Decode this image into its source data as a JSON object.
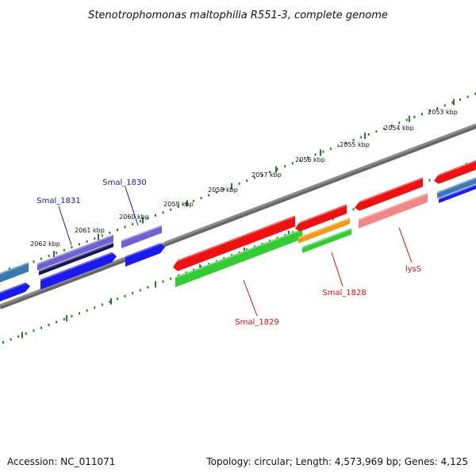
{
  "title": "Stenotrophomonas maltophilia R551-3, complete genome",
  "footer": {
    "accession": "Accession: NC_011071",
    "summary": "Topology: circular; Length: 4,573,969 bp; Genes: 4,125"
  },
  "scale": {
    "unit": "kbp",
    "labels": [
      "2053 kbp",
      "2054 kbp",
      "2055 kbp",
      "2056 kbp",
      "2057 kbp",
      "2058 kbp",
      "2059 kbp",
      "2060 kbp",
      "2061 kbp",
      "2062 kbp"
    ]
  },
  "colors": {
    "backbone": "#8a8a8a",
    "tick": "#2a7a2a",
    "label_forward": "#1a1aa6",
    "label_reverse": "#cc1111",
    "red": "#ee1111",
    "pink": "#f08888",
    "green": "#33cc33",
    "orange": "#f39a1a",
    "blue": "#1a1aee",
    "purple": "#7060d0",
    "navy": "#15155a",
    "steel": "#3a78b0"
  },
  "genes": [
    {
      "name": "Smal_1831",
      "strand": "forward"
    },
    {
      "name": "Smal_1830",
      "strand": "forward"
    },
    {
      "name": "Smal_1829",
      "strand": "reverse"
    },
    {
      "name": "Smal_1828",
      "strand": "reverse"
    },
    {
      "name": "lysS",
      "strand": "reverse"
    }
  ]
}
